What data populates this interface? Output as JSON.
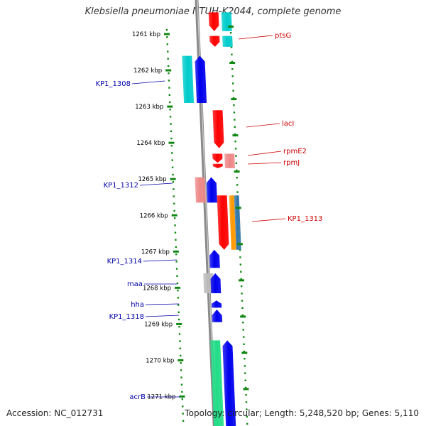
{
  "title": "Klebsiella pneumoniae NTUH-K2044, complete genome",
  "footer": {
    "accession": "Accession: NC_012731",
    "topology": "Topology: circular; Length: 5,248,520 bp; Genes: 5,110"
  },
  "colors": {
    "forward_label": "#cc0000",
    "reverse_label": "#0000aa",
    "ruler_tick": "#118811",
    "backbone": "#8a8a8a",
    "red": "#ff0000",
    "salmon": "#ee8888",
    "cyan": "#00cccc",
    "blue": "#0000ee",
    "gray": "#bbbbbb",
    "green": "#22dd88",
    "orange": "#ff9900",
    "steelblue": "#3377aa"
  },
  "ruler": {
    "unit": "kbp",
    "ticks": [
      "1261 kbp",
      "1262 kbp",
      "1263 kbp",
      "1264 kbp",
      "1265 kbp",
      "1266 kbp",
      "1267 kbp",
      "1268 kbp",
      "1269 kbp",
      "1270 kbp",
      "1271 kbp"
    ]
  },
  "labels": {
    "forward": [
      "ptsG",
      "lacI",
      "rpmE2",
      "rpmJ",
      "KP1_1313"
    ],
    "reverse": [
      "KP1_1308",
      "KP1_1312",
      "KP1_1314",
      "maa",
      "hha",
      "KP1_1318",
      "acrB"
    ]
  },
  "genes": [
    {
      "strand": "forward",
      "color": "red",
      "start_kbp": 1260.4,
      "end_kbp": 1260.92,
      "arrow": "down"
    },
    {
      "strand": "forward",
      "color": "cyan",
      "start_kbp": 1260.4,
      "end_kbp": 1260.92,
      "arrow": "none"
    },
    {
      "strand": "forward",
      "color": "red",
      "start_kbp": 1261.05,
      "end_kbp": 1261.35,
      "arrow": "down"
    },
    {
      "strand": "forward",
      "color": "cyan",
      "start_kbp": 1261.05,
      "end_kbp": 1261.35,
      "arrow": "none"
    },
    {
      "strand": "reverse",
      "color": "cyan",
      "start_kbp": 1261.6,
      "end_kbp": 1262.9,
      "arrow": "none"
    },
    {
      "strand": "reverse",
      "color": "blue",
      "start_kbp": 1261.6,
      "end_kbp": 1262.9,
      "arrow": "up"
    },
    {
      "strand": "forward",
      "color": "red",
      "start_kbp": 1263.1,
      "end_kbp": 1264.15,
      "arrow": "down"
    },
    {
      "strand": "forward",
      "color": "red",
      "start_kbp": 1264.3,
      "end_kbp": 1264.55,
      "arrow": "down"
    },
    {
      "strand": "forward",
      "color": "salmon",
      "start_kbp": 1264.3,
      "end_kbp": 1264.7,
      "arrow": "none"
    },
    {
      "strand": "forward",
      "color": "red",
      "start_kbp": 1264.58,
      "end_kbp": 1264.7,
      "arrow": "down"
    },
    {
      "strand": "reverse",
      "color": "salmon",
      "start_kbp": 1264.95,
      "end_kbp": 1265.65,
      "arrow": "none"
    },
    {
      "strand": "reverse",
      "color": "blue",
      "start_kbp": 1264.95,
      "end_kbp": 1265.65,
      "arrow": "up"
    },
    {
      "strand": "forward",
      "color": "red",
      "start_kbp": 1265.45,
      "end_kbp": 1266.95,
      "arrow": "down"
    },
    {
      "strand": "forward",
      "color": "orange",
      "start_kbp": 1265.45,
      "end_kbp": 1266.95,
      "arrow": "none"
    },
    {
      "strand": "forward",
      "color": "steelblue",
      "start_kbp": 1265.45,
      "end_kbp": 1266.95,
      "arrow": "none"
    },
    {
      "strand": "reverse",
      "color": "blue",
      "start_kbp": 1266.95,
      "end_kbp": 1267.45,
      "arrow": "up"
    },
    {
      "strand": "reverse",
      "color": "gray",
      "start_kbp": 1267.6,
      "end_kbp": 1268.15,
      "arrow": "none"
    },
    {
      "strand": "reverse",
      "color": "blue",
      "start_kbp": 1267.6,
      "end_kbp": 1268.15,
      "arrow": "up"
    },
    {
      "strand": "reverse",
      "color": "blue",
      "start_kbp": 1268.35,
      "end_kbp": 1268.55,
      "arrow": "up"
    },
    {
      "strand": "reverse",
      "color": "blue",
      "start_kbp": 1268.6,
      "end_kbp": 1268.95,
      "arrow": "up"
    },
    {
      "strand": "reverse",
      "color": "green",
      "start_kbp": 1269.45,
      "end_kbp": 1271.9,
      "arrow": "none"
    },
    {
      "strand": "reverse",
      "color": "blue",
      "start_kbp": 1269.45,
      "end_kbp": 1271.9,
      "arrow": "up"
    }
  ]
}
